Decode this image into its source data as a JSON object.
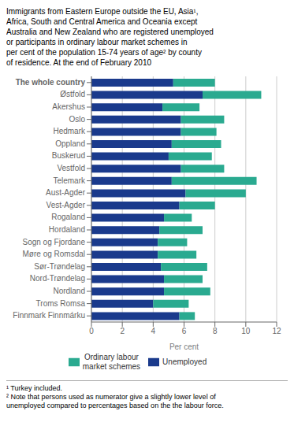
{
  "chart_data": {
    "type": "bar",
    "orientation": "horizontal",
    "stacked": true,
    "grid": true,
    "title": "Immigrants from  Eastern Europe outside the EU, Asia¹,\nAfrica, South and Central America and Oceania except\nAustralia and New Zealand who are registered unemployed\nor participants in ordinary labour market schemes in\nper cent of the population 15-74 years of age² by county\nof residence. At the end of February 2010",
    "categories": [
      "The whole country",
      "Østfold",
      "Akershus",
      "Oslo",
      "Hedmark",
      "Oppland",
      "Buskerud",
      "Vestfold",
      "Telemark",
      "Aust-Agder",
      "Vest-Agder",
      "Rogaland",
      "Hordaland",
      "Sogn og Fjordane",
      "Møre og Romsdal",
      "Sør-Trøndelag",
      "Nord-Trøndelag",
      "Nordland",
      "Troms Romsa",
      "Finnmark Finnmárku"
    ],
    "series": [
      {
        "name": "Unemployed",
        "color": "#1a3a8c",
        "values": [
          5.3,
          7.2,
          4.6,
          5.8,
          5.8,
          5.2,
          5.0,
          5.8,
          5.2,
          6.1,
          5.7,
          4.7,
          4.4,
          4.3,
          4.3,
          4.5,
          4.7,
          4.7,
          4.0,
          5.7
        ]
      },
      {
        "name": "Ordinary labour\nmarket schemes",
        "color": "#2aaa90",
        "values": [
          2.7,
          3.8,
          2.4,
          2.8,
          2.3,
          3.2,
          2.8,
          2.8,
          5.5,
          3.9,
          2.3,
          1.8,
          2.8,
          1.9,
          2.5,
          3.0,
          2.5,
          3.0,
          2.3,
          1.0
        ]
      }
    ],
    "xlabel": "Per cent",
    "xlim": [
      0,
      12
    ],
    "xticks": [
      0,
      2,
      4,
      6,
      8,
      10,
      12
    ],
    "annotations": [
      "¹ Turkey included.",
      "² Note that persons used as numerator give a slightly lower level of\nunemployed compared to percentages based on the the labour force."
    ]
  }
}
